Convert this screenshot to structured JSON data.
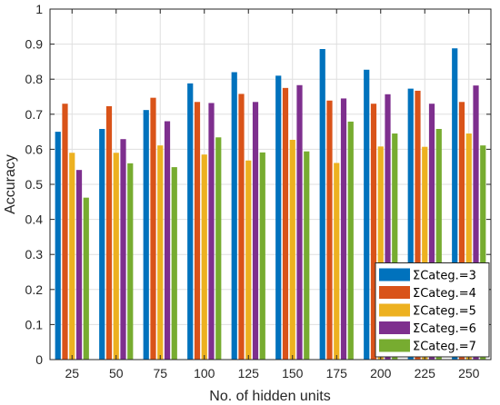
{
  "chart_data": {
    "type": "bar",
    "xlabel": "No. of hidden units",
    "ylabel": "Accuracy",
    "categories": [
      "25",
      "50",
      "75",
      "100",
      "125",
      "150",
      "175",
      "200",
      "225",
      "250"
    ],
    "ylim": [
      0,
      1
    ],
    "yticks": [
      "0",
      "0.1",
      "0.2",
      "0.3",
      "0.4",
      "0.5",
      "0.6",
      "0.7",
      "0.8",
      "0.9",
      "1"
    ],
    "grid": true,
    "legend_position": "bottom-right",
    "series": [
      {
        "name": "ΣCateg.=3",
        "color": "#0072BD",
        "values": [
          0.65,
          0.658,
          0.712,
          0.788,
          0.82,
          0.81,
          0.886,
          0.827,
          0.773,
          0.888
        ]
      },
      {
        "name": "ΣCateg.=4",
        "color": "#D95319",
        "values": [
          0.73,
          0.723,
          0.747,
          0.735,
          0.758,
          0.775,
          0.739,
          0.73,
          0.767,
          0.735
        ]
      },
      {
        "name": "ΣCateg.=5",
        "color": "#EDB120",
        "values": [
          0.59,
          0.59,
          0.611,
          0.585,
          0.568,
          0.627,
          0.561,
          0.608,
          0.607,
          0.645
        ]
      },
      {
        "name": "ΣCateg.=6",
        "color": "#7E2F8E",
        "values": [
          0.541,
          0.629,
          0.68,
          0.732,
          0.735,
          0.783,
          0.745,
          0.757,
          0.73,
          0.782
        ]
      },
      {
        "name": "ΣCateg.=7",
        "color": "#77AC30",
        "values": [
          0.462,
          0.56,
          0.549,
          0.634,
          0.591,
          0.594,
          0.679,
          0.645,
          0.658,
          0.611
        ]
      }
    ]
  }
}
